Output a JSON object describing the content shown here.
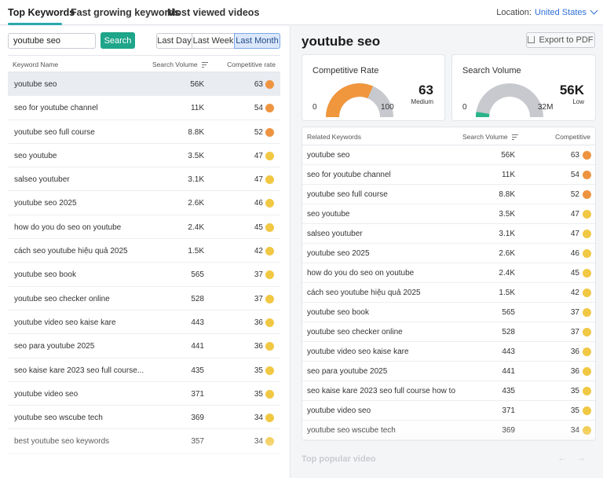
{
  "nav": {
    "tabs": [
      "Top Keywords",
      "Fast growing keywords",
      "Most viewed videos"
    ],
    "location_label": "Location:",
    "location_value": "United States"
  },
  "left": {
    "search_value": "youtube seo",
    "search_button": "Search",
    "periods": [
      "Last Day",
      "Last Week",
      "Last Month"
    ],
    "selected_period": "Last Month",
    "columns": [
      "Keyword Name",
      "Search Volume",
      "Competitive rate"
    ],
    "rows": [
      {
        "kw": "youtube seo",
        "vol": "56K",
        "cr": "63",
        "level": "orange"
      },
      {
        "kw": "seo for youtube channel",
        "vol": "11K",
        "cr": "54",
        "level": "orange"
      },
      {
        "kw": "youtube seo full course",
        "vol": "8.8K",
        "cr": "52",
        "level": "orange"
      },
      {
        "kw": "seo youtube",
        "vol": "3.5K",
        "cr": "47",
        "level": "yellow"
      },
      {
        "kw": "salseo youtuber",
        "vol": "3.1K",
        "cr": "47",
        "level": "yellow"
      },
      {
        "kw": "youtube seo 2025",
        "vol": "2.6K",
        "cr": "46",
        "level": "yellow"
      },
      {
        "kw": "how do you do seo on youtube",
        "vol": "2.4K",
        "cr": "45",
        "level": "yellow"
      },
      {
        "kw": "cách seo youtube hiệu quả 2025",
        "vol": "1.5K",
        "cr": "42",
        "level": "yellow"
      },
      {
        "kw": "youtube seo book",
        "vol": "565",
        "cr": "37",
        "level": "yellow"
      },
      {
        "kw": "youtube seo checker online",
        "vol": "528",
        "cr": "37",
        "level": "yellow"
      },
      {
        "kw": "youtube video seo kaise kare",
        "vol": "443",
        "cr": "36",
        "level": "yellow"
      },
      {
        "kw": "seo para youtube 2025",
        "vol": "441",
        "cr": "36",
        "level": "yellow"
      },
      {
        "kw": "seo kaise kare 2023 seo full course...",
        "vol": "435",
        "cr": "35",
        "level": "yellow"
      },
      {
        "kw": "youtube video seo",
        "vol": "371",
        "cr": "35",
        "level": "yellow"
      },
      {
        "kw": "youtube seo wscube tech",
        "vol": "369",
        "cr": "34",
        "level": "yellow"
      },
      {
        "kw": "best youtube seo keywords",
        "vol": "357",
        "cr": "34",
        "level": "yellow"
      }
    ]
  },
  "right": {
    "title": "youtube seo",
    "export_label": "Export to PDF",
    "competitive_card": {
      "title": "Competitive Rate",
      "value": "63",
      "label": "Medium",
      "min": "0",
      "max": "100",
      "fraction": 0.63
    },
    "volume_card": {
      "title": "Search Volume",
      "value": "56K",
      "label": "Low",
      "min": "0",
      "max": "32M",
      "fraction": 0.05
    },
    "columns": [
      "Related Keywords",
      "Search Volume",
      "Competitive"
    ],
    "rows": [
      {
        "kw": "youtube seo",
        "vol": "56K",
        "cr": "63",
        "level": "orange"
      },
      {
        "kw": "seo for youtube channel",
        "vol": "11K",
        "cr": "54",
        "level": "orange"
      },
      {
        "kw": "youtube seo full course",
        "vol": "8.8K",
        "cr": "52",
        "level": "orange"
      },
      {
        "kw": "seo youtube",
        "vol": "3.5K",
        "cr": "47",
        "level": "yellow"
      },
      {
        "kw": "salseo youtuber",
        "vol": "3.1K",
        "cr": "47",
        "level": "yellow"
      },
      {
        "kw": "youtube seo 2025",
        "vol": "2.6K",
        "cr": "46",
        "level": "yellow"
      },
      {
        "kw": "how do you do seo on youtube",
        "vol": "2.4K",
        "cr": "45",
        "level": "yellow"
      },
      {
        "kw": "cách seo youtube hiệu quả 2025",
        "vol": "1.5K",
        "cr": "42",
        "level": "yellow"
      },
      {
        "kw": "youtube seo book",
        "vol": "565",
        "cr": "37",
        "level": "yellow"
      },
      {
        "kw": "youtube seo checker online",
        "vol": "528",
        "cr": "37",
        "level": "yellow"
      },
      {
        "kw": "youtube video seo kaise kare",
        "vol": "443",
        "cr": "36",
        "level": "yellow"
      },
      {
        "kw": "seo para youtube 2025",
        "vol": "441",
        "cr": "36",
        "level": "yellow"
      },
      {
        "kw": "seo kaise kare 2023 seo full course how to",
        "vol": "435",
        "cr": "35",
        "level": "yellow"
      },
      {
        "kw": "youtube video seo",
        "vol": "371",
        "cr": "35",
        "level": "yellow"
      },
      {
        "kw": "youtube seo wscube tech",
        "vol": "369",
        "cr": "34",
        "level": "yellow"
      }
    ],
    "popular_label": "Top popular video"
  },
  "colors": {
    "accent": "#2aa7ae",
    "button": "#1ea58a",
    "orange": "#ee9440",
    "yellow": "#f1c843",
    "gauge_fill_orange": "#f0963c",
    "gauge_fill_green": "#2ab38a",
    "gauge_track": "#c7c9ce"
  }
}
